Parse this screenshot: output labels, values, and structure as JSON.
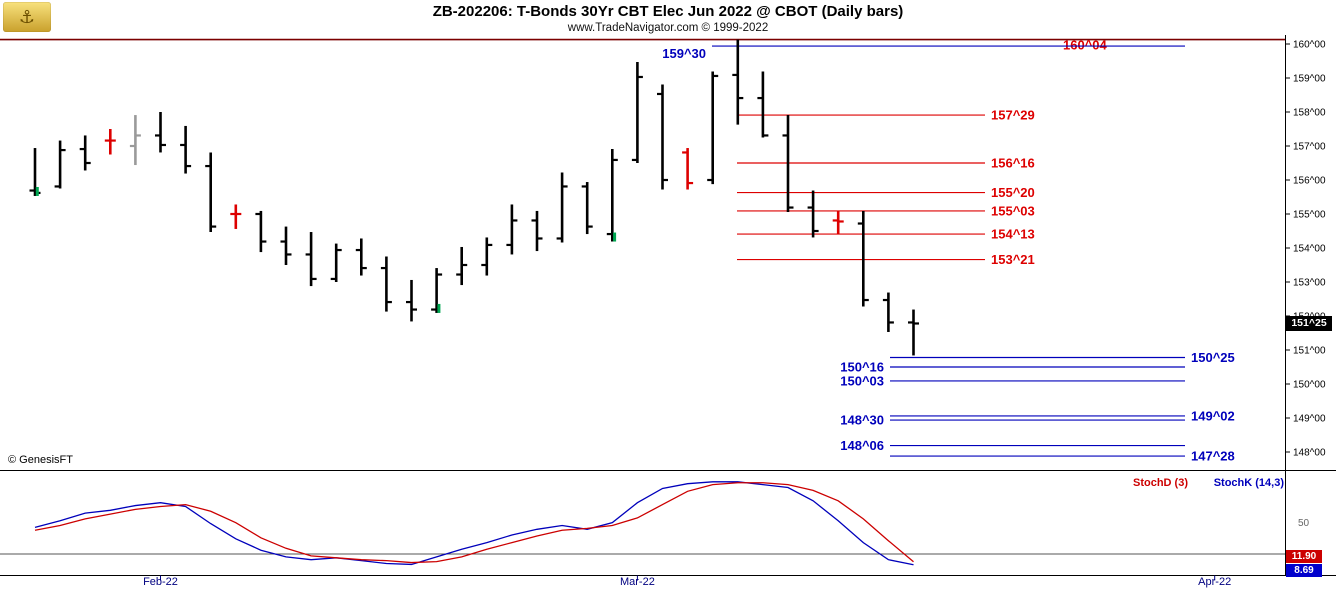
{
  "header": {
    "title": "ZB-202206:  T-Bonds 30Yr CBT Elec Jun 2022 @ CBOT  (Daily bars)",
    "subtitle": "www.TradeNavigator.com © 1999-2022"
  },
  "watermark": "© GenesisFT",
  "icons": {
    "genesis-logo": "⚓"
  },
  "colors": {
    "bar_black": "#000000",
    "bar_red": "#dd0000",
    "bar_gray": "#9a9a9a",
    "marker_green": "#00a651",
    "level_red": "#dd0000",
    "level_blue": "#0000bb",
    "contract_high_line": "#7b0000",
    "stoch_k": "#0000bb",
    "stoch_d": "#cc0000",
    "month_text": "#000080",
    "axis_text": "#000000"
  },
  "chart_data": {
    "type": "ohlc-bar",
    "title": "ZB-202206: T-Bonds 30Yr CBT Elec Jun 2022 @ CBOT (Daily bars)",
    "ylim": [
      147.5,
      160.5
    ],
    "grid": "off",
    "last_price_label": "151^25",
    "last_price_value": 151.78,
    "price_axis_ticks": [
      {
        "label": "160^00",
        "value": 160
      },
      {
        "label": "159^00",
        "value": 159
      },
      {
        "label": "158^00",
        "value": 158
      },
      {
        "label": "157^00",
        "value": 157
      },
      {
        "label": "156^00",
        "value": 156
      },
      {
        "label": "155^00",
        "value": 155
      },
      {
        "label": "154^00",
        "value": 154
      },
      {
        "label": "153^00",
        "value": 153
      },
      {
        "label": "152^00",
        "value": 152
      },
      {
        "label": "151^00",
        "value": 151
      },
      {
        "label": "150^00",
        "value": 150
      },
      {
        "label": "149^00",
        "value": 149
      },
      {
        "label": "148^00",
        "value": 148
      }
    ],
    "red_levels": [
      {
        "label": "160^04",
        "value": 160.13,
        "placement": "top"
      },
      {
        "label": "157^29",
        "value": 157.91
      },
      {
        "label": "156^16",
        "value": 156.5
      },
      {
        "label": "155^20",
        "value": 155.63
      },
      {
        "label": "155^03",
        "value": 155.09
      },
      {
        "label": "154^13",
        "value": 154.41
      },
      {
        "label": "153^21",
        "value": 153.66
      }
    ],
    "blue_levels": [
      {
        "label": "159^30",
        "value": 159.94,
        "placement": "top"
      },
      {
        "label": "150^25",
        "value": 150.78,
        "label_side": "right"
      },
      {
        "label": "150^16",
        "value": 150.5,
        "label_side": "left"
      },
      {
        "label": "150^03",
        "value": 150.09,
        "label_side": "left"
      },
      {
        "label": "149^02",
        "value": 149.06,
        "label_side": "right"
      },
      {
        "label": "148^30",
        "value": 148.94,
        "label_side": "left"
      },
      {
        "label": "148^06",
        "value": 148.19,
        "label_side": "left"
      },
      {
        "label": "147^28",
        "value": 147.88,
        "label_side": "right"
      }
    ],
    "bars": [
      {
        "o": 155.69,
        "h": 156.94,
        "l": 155.53,
        "c": 155.62,
        "marker": "green"
      },
      {
        "o": 155.81,
        "h": 157.16,
        "l": 155.75,
        "c": 156.88
      },
      {
        "o": 156.91,
        "h": 157.31,
        "l": 156.28,
        "c": 156.5
      },
      {
        "o": 157.16,
        "h": 157.5,
        "l": 156.75,
        "c": 157.16,
        "color": "red"
      },
      {
        "o": 157.0,
        "h": 157.91,
        "l": 156.44,
        "c": 157.31,
        "color": "gray"
      },
      {
        "o": 157.31,
        "h": 158.0,
        "l": 156.81,
        "c": 157.03
      },
      {
        "o": 157.03,
        "h": 157.59,
        "l": 156.19,
        "c": 156.41
      },
      {
        "o": 156.41,
        "h": 156.81,
        "l": 154.47,
        "c": 154.63
      },
      {
        "o": 155.0,
        "h": 155.28,
        "l": 154.56,
        "c": 155.0,
        "color": "red"
      },
      {
        "o": 155.0,
        "h": 155.09,
        "l": 153.88,
        "c": 154.19
      },
      {
        "o": 154.19,
        "h": 154.63,
        "l": 153.5,
        "c": 153.81
      },
      {
        "o": 153.81,
        "h": 154.47,
        "l": 152.88,
        "c": 153.09
      },
      {
        "o": 153.09,
        "h": 154.13,
        "l": 153.0,
        "c": 153.94
      },
      {
        "o": 153.94,
        "h": 154.28,
        "l": 153.19,
        "c": 153.41
      },
      {
        "o": 153.41,
        "h": 153.75,
        "l": 152.13,
        "c": 152.41
      },
      {
        "o": 152.41,
        "h": 153.06,
        "l": 151.84,
        "c": 152.19
      },
      {
        "o": 152.19,
        "h": 153.41,
        "l": 152.09,
        "c": 153.22,
        "marker": "green"
      },
      {
        "o": 153.22,
        "h": 154.03,
        "l": 152.91,
        "c": 153.5
      },
      {
        "o": 153.5,
        "h": 154.31,
        "l": 153.19,
        "c": 154.09
      },
      {
        "o": 154.09,
        "h": 155.28,
        "l": 153.81,
        "c": 154.81
      },
      {
        "o": 154.81,
        "h": 155.09,
        "l": 153.91,
        "c": 154.28
      },
      {
        "o": 154.28,
        "h": 156.22,
        "l": 154.16,
        "c": 155.81
      },
      {
        "o": 155.81,
        "h": 155.94,
        "l": 154.41,
        "c": 154.63
      },
      {
        "o": 154.41,
        "h": 156.91,
        "l": 154.19,
        "c": 156.59,
        "marker": "green"
      },
      {
        "o": 156.59,
        "h": 159.47,
        "l": 156.5,
        "c": 159.03
      },
      {
        "o": 158.53,
        "h": 158.81,
        "l": 155.72,
        "c": 156.0
      },
      {
        "o": 156.81,
        "h": 156.94,
        "l": 155.72,
        "c": 155.91,
        "color": "red"
      },
      {
        "o": 156.0,
        "h": 159.19,
        "l": 155.88,
        "c": 159.06
      },
      {
        "o": 159.09,
        "h": 160.13,
        "l": 157.63,
        "c": 158.41
      },
      {
        "o": 158.41,
        "h": 159.19,
        "l": 157.25,
        "c": 157.31
      },
      {
        "o": 157.31,
        "h": 157.91,
        "l": 155.06,
        "c": 155.19
      },
      {
        "o": 155.19,
        "h": 155.69,
        "l": 154.31,
        "c": 154.5
      },
      {
        "o": 154.81,
        "h": 155.09,
        "l": 154.41,
        "c": 154.78,
        "color": "red"
      },
      {
        "o": 154.72,
        "h": 155.09,
        "l": 152.28,
        "c": 152.47
      },
      {
        "o": 152.47,
        "h": 152.69,
        "l": 151.53,
        "c": 151.81
      },
      {
        "o": 151.81,
        "h": 152.19,
        "l": 150.84,
        "c": 151.78
      }
    ],
    "x_axis_months": [
      {
        "label": "Feb-22",
        "bar_index": 5
      },
      {
        "label": "Mar-22",
        "bar_index": 24
      },
      {
        "label": "Apr-22",
        "bar_index": 47
      }
    ],
    "stochastic": {
      "d_label": "StochD (3)",
      "k_label": "StochK (14,3)",
      "d_last_label": "11.90",
      "k_last_label": "8.69",
      "scale_label": "50",
      "gridline_value": 20,
      "ylim": [
        0,
        100
      ],
      "d": [
        45,
        50,
        57,
        62,
        67,
        70,
        72,
        65,
        53,
        37,
        26,
        18,
        16,
        14,
        13,
        11,
        12,
        17,
        25,
        32,
        39,
        45,
        47,
        50,
        58,
        72,
        86,
        93,
        95,
        95,
        93,
        87,
        76,
        57,
        34,
        11.9
      ],
      "k": [
        48,
        55,
        63,
        66,
        71,
        74,
        70,
        52,
        36,
        24,
        17,
        14,
        16,
        13,
        10,
        9,
        17,
        25,
        32,
        40,
        46,
        50,
        46,
        53,
        74,
        89,
        94,
        96,
        96,
        93,
        90,
        76,
        55,
        32,
        14,
        8.69
      ]
    }
  }
}
